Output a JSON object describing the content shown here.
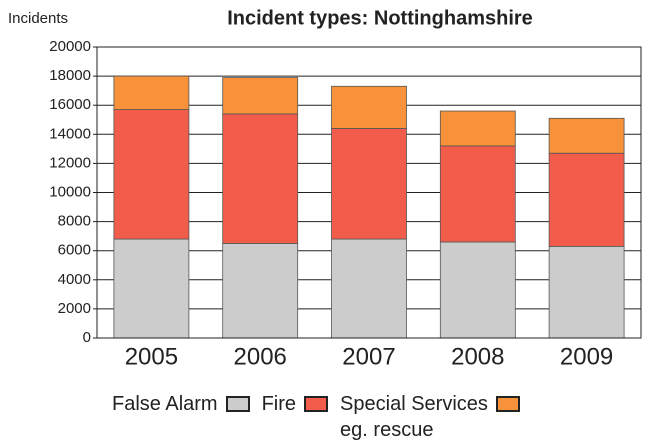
{
  "chart_data": {
    "type": "stacked_bar",
    "title": "Incident types: Nottinghamshire",
    "y_label": "Incidents",
    "categories": [
      "2005",
      "2006",
      "2007",
      "2008",
      "2009"
    ],
    "series": [
      {
        "name": "False Alarm",
        "color": "#cccccc",
        "values": [
          6800,
          6500,
          6800,
          6600,
          6300
        ]
      },
      {
        "name": "Fire",
        "color": "#f25d4b",
        "values": [
          8900,
          8900,
          7600,
          6600,
          6400
        ]
      },
      {
        "name": "Special Services\neg. rescue",
        "color": "#f7913a",
        "values": [
          2300,
          2500,
          2900,
          2400,
          2400
        ]
      }
    ],
    "ylim": [
      0,
      20000
    ],
    "yticks": [
      0,
      2000,
      4000,
      6000,
      8000,
      10000,
      12000,
      14000,
      16000,
      18000,
      20000
    ],
    "grid": true
  }
}
